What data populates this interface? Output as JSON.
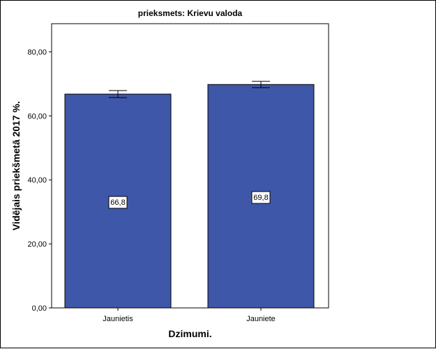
{
  "chart_data": {
    "type": "bar",
    "title": "prieksmets: Krievu valoda",
    "xlabel": "Dzimumi.",
    "ylabel": "Vidējais priekšmetā 2017 %.",
    "categories": [
      "Jaunietis",
      "Jauniete"
    ],
    "values": [
      66.8,
      69.8
    ],
    "data_labels": [
      "66,8",
      "69,8"
    ],
    "error_bars": [
      {
        "lower": 65.7,
        "upper": 67.9
      },
      {
        "lower": 68.8,
        "upper": 70.8
      }
    ],
    "ylim": [
      0,
      88.8
    ],
    "yticks": [
      0,
      20,
      40,
      60,
      80
    ],
    "ytick_labels": [
      "0,00",
      "20,00",
      "40,00",
      "60,00",
      "80,00"
    ],
    "grid": false,
    "legend": "none",
    "colors": {
      "bar_fill": "#3f57a8",
      "bar_stroke": "#000000",
      "plot_background": "#ffffff",
      "axis": "#000000"
    }
  }
}
